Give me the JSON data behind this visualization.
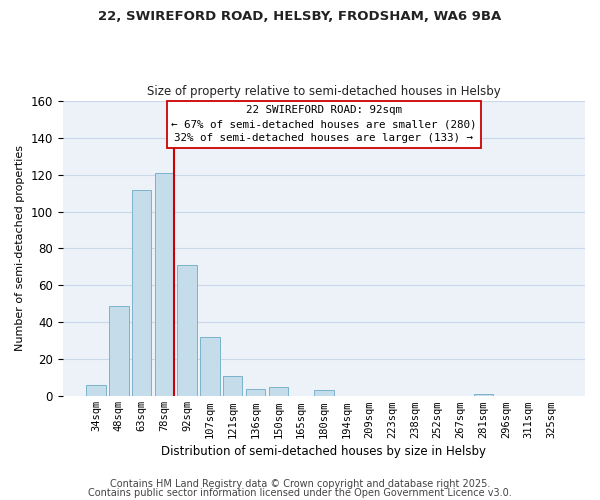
{
  "title_line1": "22, SWIREFORD ROAD, HELSBY, FRODSHAM, WA6 9BA",
  "title_line2": "Size of property relative to semi-detached houses in Helsby",
  "xlabel": "Distribution of semi-detached houses by size in Helsby",
  "ylabel": "Number of semi-detached properties",
  "categories": [
    "34sqm",
    "48sqm",
    "63sqm",
    "78sqm",
    "92sqm",
    "107sqm",
    "121sqm",
    "136sqm",
    "150sqm",
    "165sqm",
    "180sqm",
    "194sqm",
    "209sqm",
    "223sqm",
    "238sqm",
    "252sqm",
    "267sqm",
    "281sqm",
    "296sqm",
    "311sqm",
    "325sqm"
  ],
  "values": [
    6,
    49,
    112,
    121,
    71,
    32,
    11,
    4,
    5,
    0,
    3,
    0,
    0,
    0,
    0,
    0,
    0,
    1,
    0,
    0,
    0
  ],
  "bar_color": "#c5dcea",
  "bar_edge_color": "#7bb3cc",
  "vline_color": "#cc0000",
  "vline_x_index": 3,
  "annotation_line1": "22 SWIREFORD ROAD: 92sqm",
  "annotation_line2": "← 67% of semi-detached houses are smaller (280)",
  "annotation_line3": "32% of semi-detached houses are larger (133) →",
  "ylim": [
    0,
    160
  ],
  "yticks": [
    0,
    20,
    40,
    60,
    80,
    100,
    120,
    140,
    160
  ],
  "grid_color": "#c8d8e8",
  "background_color": "#edf2f8",
  "footer_line1": "Contains HM Land Registry data © Crown copyright and database right 2025.",
  "footer_line2": "Contains public sector information licensed under the Open Government Licence v3.0.",
  "footer_fontsize": 7
}
